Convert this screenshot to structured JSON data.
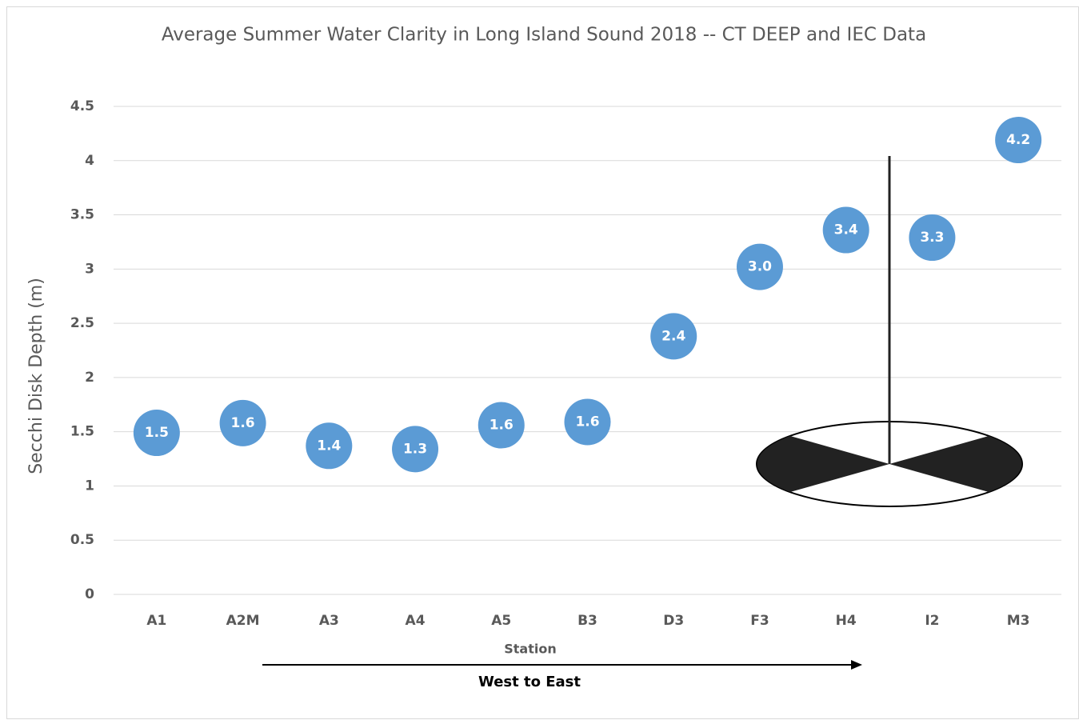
{
  "chart_data": {
    "type": "scatter",
    "title": "Average Summer Water Clarity in Long Island Sound 2018 -- CT DEEP and IEC Data",
    "y_label": "Secchi Disk Depth (m)",
    "x_label": "Station",
    "annotation": "West to East",
    "categories": [
      "A1",
      "A2M",
      "A3",
      "A4",
      "A5",
      "B3",
      "D3",
      "F3",
      "H4",
      "I2",
      "M3"
    ],
    "values": [
      1.49,
      1.58,
      1.37,
      1.34,
      1.56,
      1.59,
      2.38,
      3.02,
      3.36,
      3.29,
      4.19
    ],
    "value_labels": [
      "1.5",
      "1.6",
      "1.4",
      "1.3",
      "1.6",
      "1.6",
      "2.4",
      "3.0",
      "3.4",
      "3.3",
      "4.2"
    ],
    "color": "#5b9bd5",
    "ylim": [
      0,
      4.5
    ],
    "yticks": [
      0,
      0.5,
      1,
      1.5,
      2,
      2.5,
      3,
      3.5,
      4,
      4.5
    ],
    "grid": true
  }
}
